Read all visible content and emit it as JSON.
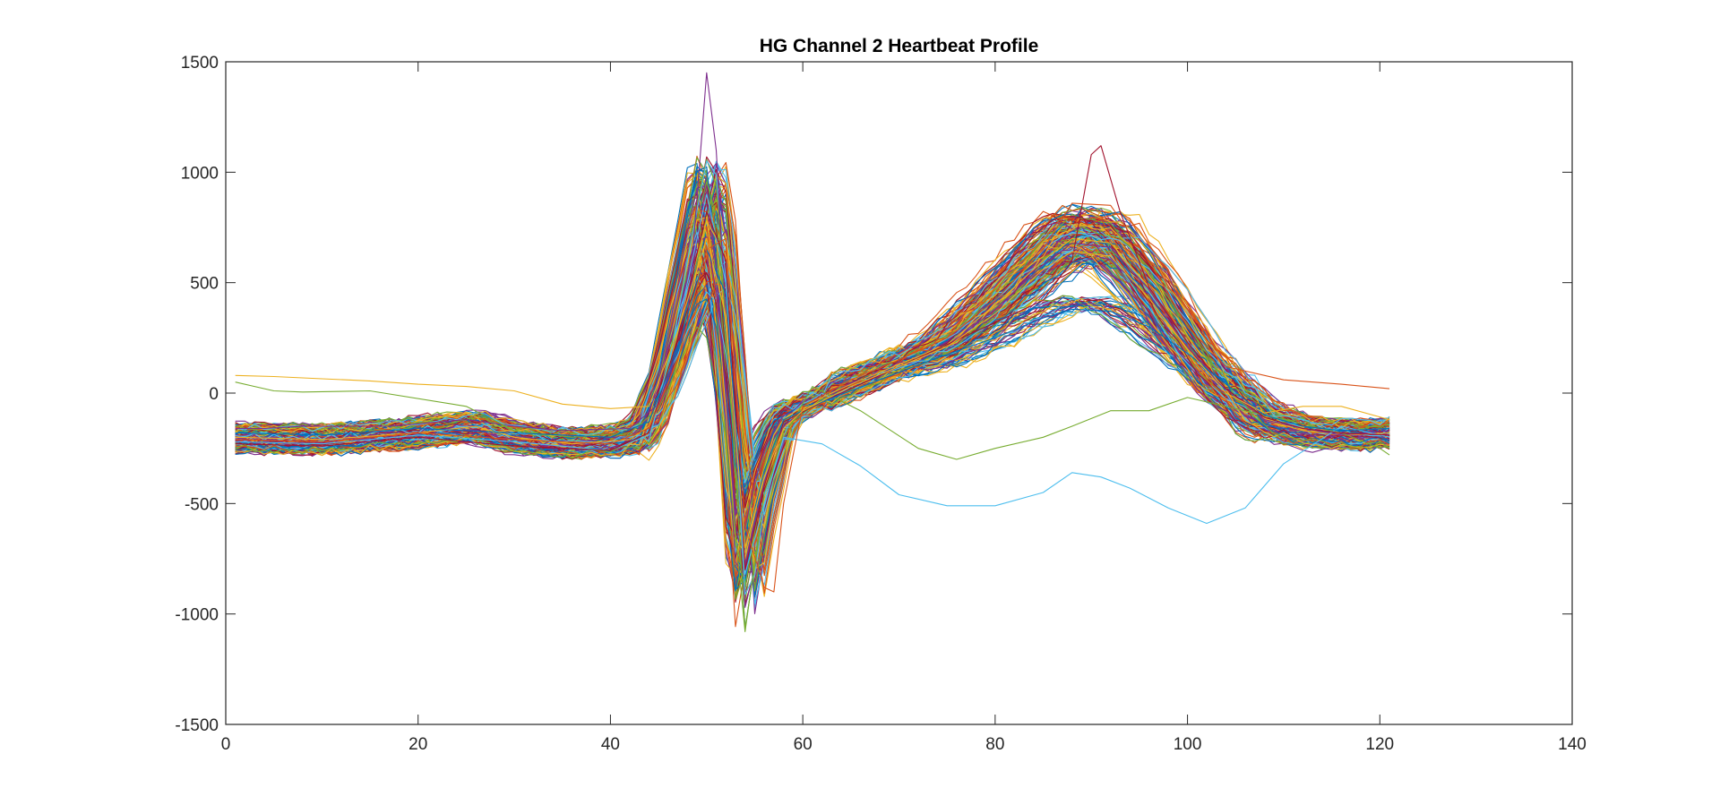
{
  "chart_data": {
    "type": "line",
    "title": "HG Channel 2 Heartbeat Profile",
    "xlabel": "",
    "ylabel": "",
    "xlim": [
      0,
      140
    ],
    "ylim": [
      -1500,
      1500
    ],
    "x_ticks": [
      0,
      20,
      40,
      60,
      80,
      100,
      120,
      140
    ],
    "y_ticks": [
      -1500,
      -1000,
      -500,
      0,
      500,
      1000,
      1500
    ],
    "grid": false,
    "legend": "none",
    "x_range_of_series": [
      1,
      121
    ],
    "num_beats_approx": 300,
    "series_colors": [
      "#0072BD",
      "#D95319",
      "#EDB120",
      "#7E2F8E",
      "#77AC30",
      "#4DBEEE",
      "#A2142F"
    ],
    "template": {
      "x": [
        1,
        10,
        20,
        26,
        30,
        36,
        42,
        44,
        46,
        48,
        50,
        51,
        52,
        54,
        56,
        58,
        60,
        65,
        70,
        75,
        80,
        85,
        88,
        92,
        96,
        100,
        104,
        108,
        112,
        116,
        121
      ],
      "y": [
        -200,
        -210,
        -180,
        -150,
        -200,
        -230,
        -210,
        -150,
        100,
        450,
        780,
        700,
        300,
        -750,
        -350,
        -120,
        -60,
        40,
        130,
        220,
        400,
        600,
        700,
        680,
        480,
        230,
        20,
        -120,
        -170,
        -190,
        -180
      ]
    },
    "representative_series": [
      {
        "x": [
          1,
          10,
          20,
          26,
          30,
          36,
          42,
          44,
          46,
          48,
          50,
          51,
          52,
          54,
          56,
          58,
          60,
          65,
          70,
          75,
          80,
          85,
          88,
          92,
          96,
          100,
          104,
          108,
          112,
          116,
          121
        ],
        "y": [
          -200,
          -210,
          -180,
          -150,
          -200,
          -230,
          -210,
          -150,
          100,
          450,
          780,
          700,
          300,
          -750,
          -350,
          -120,
          -60,
          40,
          130,
          220,
          400,
          600,
          700,
          680,
          480,
          230,
          20,
          -120,
          -170,
          -190,
          -180
        ]
      },
      {
        "x": [
          1,
          4,
          8,
          12,
          17,
          25,
          30,
          35,
          42,
          45,
          48,
          50,
          51,
          52,
          54,
          56,
          58,
          60,
          65,
          70,
          75,
          80,
          85,
          88,
          92,
          96,
          100,
          104,
          108,
          112,
          116,
          121
        ],
        "y": [
          -160,
          -160,
          -150,
          -150,
          -150,
          -120,
          -150,
          -170,
          -160,
          -50,
          320,
          1450,
          1100,
          350,
          -780,
          -400,
          -150,
          -80,
          20,
          120,
          210,
          380,
          580,
          680,
          660,
          470,
          230,
          20,
          -120,
          -160,
          -190,
          -170
        ]
      },
      {
        "x": [
          1,
          3,
          5,
          8,
          15,
          25,
          30,
          36,
          42,
          45,
          49,
          50,
          52,
          54,
          56,
          58,
          61,
          66,
          72,
          76,
          80,
          85,
          88,
          92,
          96,
          100,
          104,
          108,
          112,
          116,
          120,
          121
        ],
        "y": [
          50,
          30,
          10,
          5,
          10,
          -60,
          -170,
          -200,
          -180,
          -70,
          300,
          250,
          -200,
          -1080,
          -450,
          -200,
          30,
          -80,
          -250,
          -300,
          -250,
          -200,
          -150,
          -80,
          -80,
          -20,
          -60,
          -100,
          -140,
          -180,
          -250,
          -280
        ]
      },
      {
        "x": [
          1,
          10,
          20,
          30,
          40,
          44,
          47,
          50,
          52,
          54,
          56,
          58,
          62,
          66,
          70,
          75,
          80,
          85,
          88,
          91,
          94,
          98,
          102,
          106,
          110,
          116,
          121
        ],
        "y": [
          -220,
          -230,
          -190,
          -220,
          -260,
          -190,
          300,
          900,
          500,
          -820,
          -500,
          -200,
          -230,
          -330,
          -460,
          -510,
          -510,
          -450,
          -360,
          -380,
          -430,
          -520,
          -590,
          -520,
          -320,
          -150,
          -200
        ]
      },
      {
        "x": [
          1,
          10,
          20,
          30,
          40,
          44,
          47,
          50,
          52,
          54,
          56,
          58,
          62,
          68,
          74,
          80,
          85,
          88,
          90,
          91,
          93,
          96,
          100,
          104,
          108,
          112,
          116,
          121
        ],
        "y": [
          -230,
          -240,
          -200,
          -240,
          -260,
          -180,
          250,
          820,
          600,
          -800,
          -420,
          -130,
          -40,
          80,
          200,
          320,
          420,
          600,
          1080,
          1120,
          820,
          480,
          230,
          20,
          -110,
          -160,
          -180,
          -190
        ]
      },
      {
        "x": [
          1,
          10,
          20,
          30,
          40,
          44,
          47,
          50,
          52,
          54,
          56,
          58,
          62,
          68,
          74,
          80,
          85,
          88,
          92,
          96,
          100,
          104,
          108,
          112,
          116,
          121
        ],
        "y": [
          -180,
          -190,
          -160,
          -180,
          -200,
          -130,
          200,
          650,
          450,
          -700,
          -350,
          -120,
          -40,
          60,
          160,
          250,
          340,
          380,
          370,
          300,
          180,
          40,
          -100,
          -150,
          -170,
          -160
        ]
      },
      {
        "x": [
          1,
          10,
          20,
          30,
          40,
          44,
          47,
          50,
          52,
          54,
          56,
          57,
          58,
          60,
          65,
          70,
          75,
          80,
          85,
          88,
          92,
          96,
          100,
          104,
          110,
          116,
          121
        ],
        "y": [
          -210,
          -220,
          -180,
          -210,
          -230,
          -160,
          150,
          650,
          700,
          -600,
          -880,
          -900,
          -500,
          -60,
          60,
          150,
          250,
          420,
          650,
          860,
          850,
          600,
          300,
          120,
          60,
          40,
          20
        ]
      },
      {
        "x": [
          1,
          5,
          10,
          15,
          20,
          25,
          30,
          35,
          40,
          44,
          47,
          50,
          52,
          54,
          56,
          58,
          60,
          65,
          70,
          75,
          80,
          85,
          88,
          92,
          96,
          100,
          104,
          108,
          112,
          116,
          121
        ],
        "y": [
          80,
          75,
          65,
          55,
          40,
          30,
          10,
          -50,
          -70,
          -60,
          280,
          700,
          350,
          -700,
          -380,
          -160,
          -80,
          30,
          120,
          210,
          360,
          560,
          640,
          620,
          430,
          200,
          0,
          -90,
          -60,
          -60,
          -120
        ]
      }
    ]
  }
}
